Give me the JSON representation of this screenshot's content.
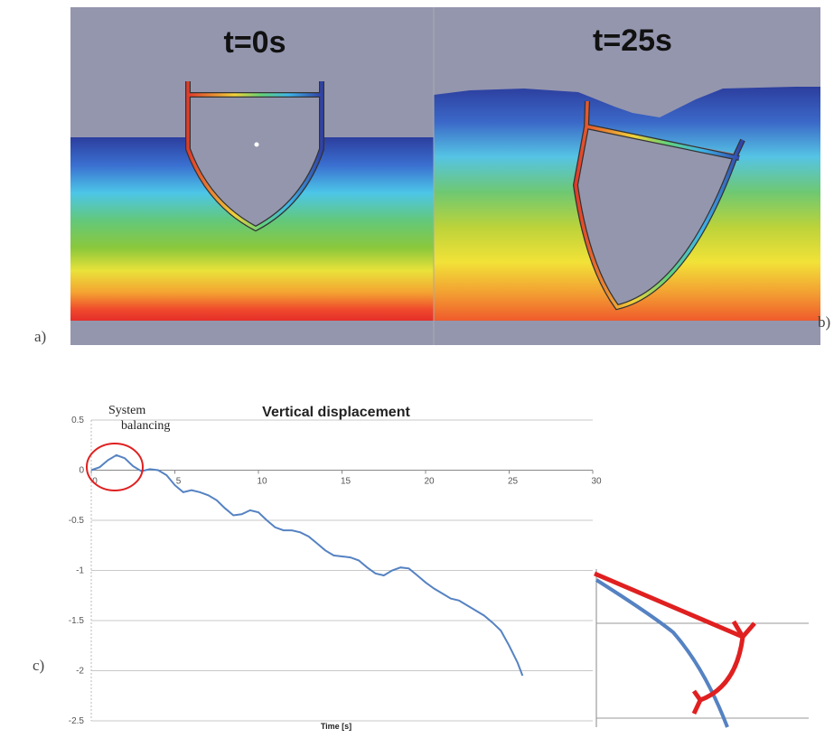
{
  "panels": {
    "left_time": "t=0s",
    "right_time": "t=25s",
    "left_label": "a)",
    "right_label": "b)"
  },
  "chart_data": {
    "type": "line",
    "title": "Vertical displacement",
    "xlabel": "Time [s]",
    "annotation": "System balancing",
    "panel_label": "c)",
    "color": "#5582c2",
    "grid": true,
    "x": [
      0,
      0.5,
      1,
      1.5,
      2,
      2.5,
      3,
      3.5,
      4,
      4.5,
      5,
      5.5,
      6,
      6.5,
      7,
      7.5,
      8,
      8.5,
      9,
      9.5,
      10,
      10.5,
      11,
      11.5,
      12,
      12.5,
      13,
      13.5,
      14,
      14.5,
      15,
      15.5,
      16,
      16.5,
      17,
      17.5,
      18,
      18.5,
      19,
      19.5,
      20,
      20.5,
      21,
      21.5,
      22,
      22.5,
      23,
      23.5,
      24,
      24.5,
      25,
      25.5,
      25.8
    ],
    "values": [
      0,
      0.03,
      0.1,
      0.15,
      0.12,
      0.04,
      -0.01,
      0.01,
      0,
      -0.05,
      -0.15,
      -0.22,
      -0.2,
      -0.22,
      -0.25,
      -0.3,
      -0.38,
      -0.45,
      -0.44,
      -0.4,
      -0.42,
      -0.5,
      -0.57,
      -0.6,
      -0.6,
      -0.62,
      -0.66,
      -0.73,
      -0.8,
      -0.85,
      -0.86,
      -0.87,
      -0.9,
      -0.97,
      -1.03,
      -1.05,
      -1.0,
      -0.97,
      -0.98,
      -1.05,
      -1.12,
      -1.18,
      -1.23,
      -1.28,
      -1.3,
      -1.35,
      -1.4,
      -1.45,
      -1.52,
      -1.6,
      -1.75,
      -1.92,
      -2.05
    ],
    "xlim": [
      0,
      30
    ],
    "xticks": [
      0,
      5,
      10,
      15,
      20,
      25,
      30
    ],
    "ylim": [
      -2.5,
      0.5
    ],
    "yticks": [
      0.5,
      0,
      -0.5,
      -1,
      -1.5,
      -2,
      -2.5
    ]
  }
}
